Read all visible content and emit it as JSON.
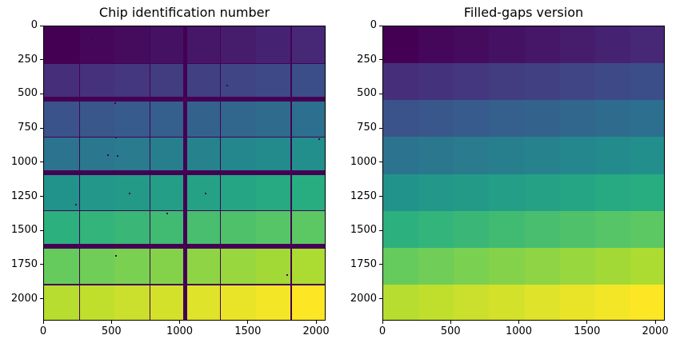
{
  "figure": {
    "background": "#ffffff",
    "spine_color": "#000000",
    "tick_label_color": "#000000",
    "gap_color": "#440154",
    "viridis_stops": [
      "#440154",
      "#472d7b",
      "#3b528b",
      "#2c728e",
      "#21918c",
      "#28ae80",
      "#5ec962",
      "#addc30",
      "#fde725"
    ]
  },
  "chart_data": [
    {
      "type": "heatmap",
      "title": "Chip identification number",
      "colormap": "viridis",
      "vmin": 0,
      "vmax": 63,
      "grid_rows": 8,
      "grid_cols": 8,
      "values": [
        [
          0,
          1,
          2,
          3,
          4,
          5,
          6,
          7
        ],
        [
          8,
          9,
          10,
          11,
          12,
          13,
          14,
          15
        ],
        [
          16,
          17,
          18,
          19,
          20,
          21,
          22,
          23
        ],
        [
          24,
          25,
          26,
          27,
          28,
          29,
          30,
          31
        ],
        [
          32,
          33,
          34,
          35,
          36,
          37,
          38,
          39
        ],
        [
          40,
          41,
          42,
          43,
          44,
          45,
          46,
          47
        ],
        [
          48,
          49,
          50,
          51,
          52,
          53,
          54,
          55
        ],
        [
          56,
          57,
          58,
          59,
          60,
          61,
          62,
          63
        ]
      ],
      "x_ticks": [
        0,
        500,
        1000,
        1500,
        2000
      ],
      "y_ticks": [
        0,
        250,
        500,
        750,
        1000,
        1250,
        1500,
        1750,
        2000
      ],
      "xlim": [
        0,
        2070
      ],
      "ylim": [
        2160,
        0
      ],
      "has_gaps": true,
      "gaps": {
        "vertical_thin_boundaries": [
          1,
          3,
          5,
          7
        ],
        "vertical_thick_boundaries": [
          4
        ],
        "horizontal_thin_boundaries": [
          1,
          3,
          5,
          7
        ],
        "horizontal_thick_boundaries": [
          2,
          4,
          6
        ]
      },
      "speckles": [
        [
          0.167,
          0.041
        ],
        [
          0.646,
          0.198
        ],
        [
          0.249,
          0.257
        ],
        [
          0.252,
          0.374
        ],
        [
          0.224,
          0.434
        ],
        [
          0.258,
          0.436
        ],
        [
          0.972,
          0.379
        ],
        [
          0.3,
          0.564
        ],
        [
          0.569,
          0.564
        ],
        [
          0.11,
          0.602
        ],
        [
          0.433,
          0.631
        ],
        [
          0.252,
          0.775
        ],
        [
          0.858,
          0.84
        ]
      ]
    },
    {
      "type": "heatmap",
      "title": "Filled-gaps version",
      "colormap": "viridis",
      "vmin": 0,
      "vmax": 63,
      "grid_rows": 8,
      "grid_cols": 8,
      "values": [
        [
          0,
          1,
          2,
          3,
          4,
          5,
          6,
          7
        ],
        [
          8,
          9,
          10,
          11,
          12,
          13,
          14,
          15
        ],
        [
          16,
          17,
          18,
          19,
          20,
          21,
          22,
          23
        ],
        [
          24,
          25,
          26,
          27,
          28,
          29,
          30,
          31
        ],
        [
          32,
          33,
          34,
          35,
          36,
          37,
          38,
          39
        ],
        [
          40,
          41,
          42,
          43,
          44,
          45,
          46,
          47
        ],
        [
          48,
          49,
          50,
          51,
          52,
          53,
          54,
          55
        ],
        [
          56,
          57,
          58,
          59,
          60,
          61,
          62,
          63
        ]
      ],
      "x_ticks": [
        0,
        500,
        1000,
        1500,
        2000
      ],
      "y_ticks": [
        0,
        250,
        500,
        750,
        1000,
        1250,
        1500,
        1750,
        2000
      ],
      "xlim": [
        0,
        2070
      ],
      "ylim": [
        2160,
        0
      ],
      "has_gaps": false,
      "speckles": []
    }
  ]
}
